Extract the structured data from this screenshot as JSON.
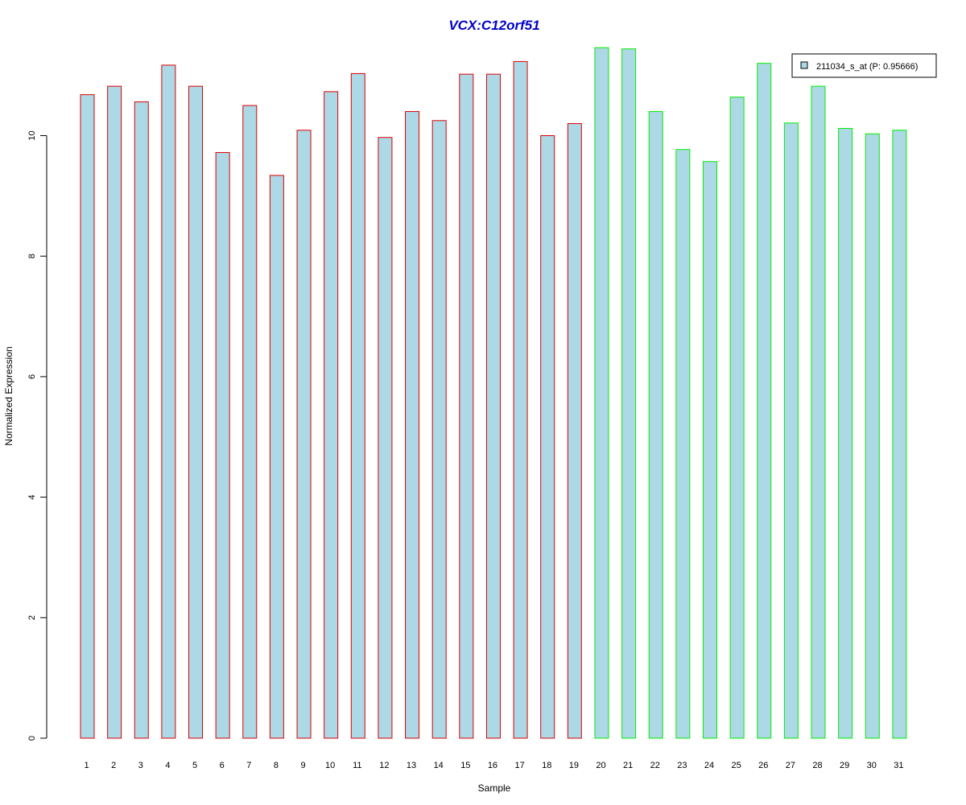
{
  "chart_data": {
    "type": "bar",
    "title": "VCX:C12orf51",
    "xlabel": "Sample",
    "ylabel": "Normalized Expression",
    "categories": [
      "1",
      "2",
      "3",
      "4",
      "5",
      "6",
      "7",
      "8",
      "9",
      "10",
      "11",
      "12",
      "13",
      "14",
      "15",
      "16",
      "17",
      "18",
      "19",
      "20",
      "21",
      "22",
      "23",
      "24",
      "25",
      "26",
      "27",
      "28",
      "29",
      "30",
      "31"
    ],
    "series": [
      {
        "name": "211034_s_at (P: 0.95666)",
        "values": [
          10.68,
          10.82,
          10.56,
          11.17,
          10.82,
          9.72,
          10.5,
          9.34,
          10.09,
          10.73,
          11.03,
          9.97,
          10.4,
          10.25,
          11.02,
          11.02,
          11.23,
          10.0,
          10.2,
          11.46,
          11.44,
          10.4,
          9.77,
          9.57,
          10.64,
          11.2,
          10.21,
          10.82,
          10.12,
          10.03,
          10.09
        ]
      }
    ],
    "groups": [
      {
        "border_color": "#dd0000",
        "from": 1,
        "to": 19
      },
      {
        "border_color": "#00ee00",
        "from": 20,
        "to": 31
      }
    ],
    "bar_fill": "#add8e6",
    "title_color": "#0000cc",
    "yticks": [
      0,
      2,
      4,
      6,
      8,
      10
    ],
    "ylim": [
      0,
      11.5
    ],
    "grid": false,
    "legend_position": "top-right"
  }
}
